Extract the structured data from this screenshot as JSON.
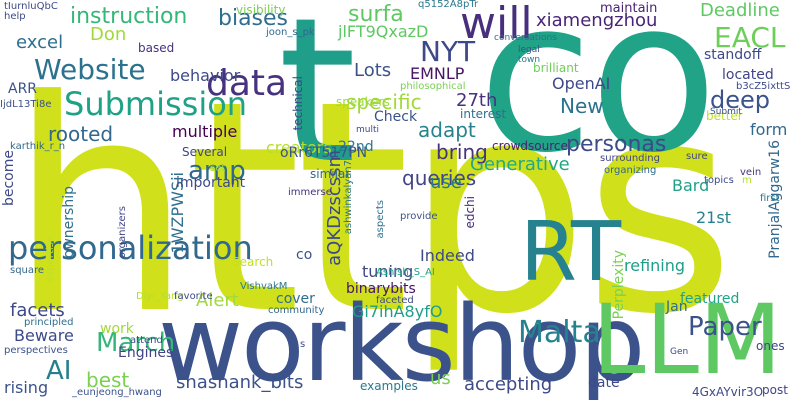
{
  "words": [
    {
      "text": "https",
      "color": "#d0e11c"
    },
    {
      "text": "co",
      "color": "#20a386"
    },
    {
      "text": "t",
      "color": "#1f9e89"
    },
    {
      "text": "t",
      "color": "#c8e020"
    },
    {
      "text": "workshop",
      "color": "#3b528b"
    },
    {
      "text": "RT",
      "color": "#26828e"
    },
    {
      "text": "LLM",
      "color": "#5ec962"
    },
    {
      "text": "personalization",
      "color": "#31688e"
    },
    {
      "text": "Submission",
      "color": "#1fa187"
    },
    {
      "text": "Website",
      "color": "#2c728e"
    },
    {
      "text": "will",
      "color": "#472f7d"
    },
    {
      "text": "EACL",
      "color": "#6ece58"
    },
    {
      "text": "NYT",
      "color": "#3e4989"
    },
    {
      "text": "data",
      "color": "#46327e"
    },
    {
      "text": "amp",
      "color": "#31688e"
    },
    {
      "text": "Malta",
      "color": "#26828e"
    },
    {
      "text": "Paper",
      "color": "#3b528b"
    },
    {
      "text": "March",
      "color": "#35b779"
    },
    {
      "text": "AI",
      "color": "#277f8e"
    },
    {
      "text": "instruction",
      "color": "#35b779"
    },
    {
      "text": "biases",
      "color": "#2e6e8e"
    },
    {
      "text": "surfa",
      "color": "#5ec962"
    },
    {
      "text": "xiamengzhou",
      "color": "#482576"
    },
    {
      "text": "Deadline",
      "color": "#5ec962"
    },
    {
      "text": "maintain",
      "color": "#482475"
    },
    {
      "text": "excel",
      "color": "#2e6e8e"
    },
    {
      "text": "Don",
      "color": "#9fda3a"
    },
    {
      "text": "Lots",
      "color": "#3b528b"
    },
    {
      "text": "EMNLP",
      "color": "#471365"
    },
    {
      "text": "behavior",
      "color": "#3e4989"
    },
    {
      "text": "specific",
      "color": "#a0da39"
    },
    {
      "text": "27th",
      "color": "#46327e"
    },
    {
      "text": "adapt",
      "color": "#26828e"
    },
    {
      "text": "deep",
      "color": "#3b528b"
    },
    {
      "text": "New",
      "color": "#2c728e"
    },
    {
      "text": "OpenAI",
      "color": "#3e4989"
    },
    {
      "text": "rooted",
      "color": "#31688e"
    },
    {
      "text": "multiple",
      "color": "#440154"
    },
    {
      "text": "personas",
      "color": "#3e4989"
    },
    {
      "text": "bring",
      "color": "#46327e"
    },
    {
      "text": "queries",
      "color": "#414487"
    },
    {
      "text": "Generative",
      "color": "#22a884"
    },
    {
      "text": "use",
      "color": "#2a788e"
    },
    {
      "text": "creators",
      "color": "#b5de2b"
    },
    {
      "text": "form",
      "color": "#31688e"
    },
    {
      "text": "22nd",
      "color": "#2a788e"
    },
    {
      "text": "Indeed",
      "color": "#3e4989"
    },
    {
      "text": "Bard",
      "color": "#1fa187"
    },
    {
      "text": "21st",
      "color": "#26828e"
    },
    {
      "text": "tuning",
      "color": "#3e4989"
    },
    {
      "text": "refining",
      "color": "#1f9e89"
    },
    {
      "text": "binarybits",
      "color": "#471365"
    },
    {
      "text": "featured",
      "color": "#20a386"
    },
    {
      "text": "cover",
      "color": "#2e6e8e"
    },
    {
      "text": "Alert",
      "color": "#9fda3a"
    },
    {
      "text": "facets",
      "color": "#3e4989"
    },
    {
      "text": "Beware",
      "color": "#3e4989"
    },
    {
      "text": "Jan",
      "color": "#2e6e8e"
    },
    {
      "text": "best",
      "color": "#7ad151"
    },
    {
      "text": "shashank_bits",
      "color": "#3b528b"
    },
    {
      "text": "accepting",
      "color": "#3e4989"
    },
    {
      "text": "rising",
      "color": "#3b528b"
    },
    {
      "text": "us",
      "color": "#7ad151"
    },
    {
      "text": "Engines",
      "color": "#414487"
    },
    {
      "text": "oRr6T517PN",
      "color": "#3b528b"
    },
    {
      "text": "aQKDzscssm",
      "color": "#3e4989"
    },
    {
      "text": "Gi7ihA8yfO",
      "color": "#1f9e89"
    },
    {
      "text": "jlFT9QxazD",
      "color": "#5ec962"
    },
    {
      "text": "1WZPWSii",
      "color": "#2e6e8e"
    },
    {
      "text": "4GxAYvir3O",
      "color": "#3e4989"
    },
    {
      "text": "Search",
      "color": "#c0df25"
    },
    {
      "text": "Perplexity",
      "color": "#7ad151"
    },
    {
      "text": "PranjalAggarw16",
      "color": "#31688e"
    },
    {
      "text": "important",
      "color": "#3e4989"
    },
    {
      "text": "based",
      "color": "#46327e"
    },
    {
      "text": "Several",
      "color": "#414487"
    },
    {
      "text": "Check",
      "color": "#3b528b"
    },
    {
      "text": "ownership",
      "color": "#2e6e8e"
    },
    {
      "text": "brilliant",
      "color": "#6ece58"
    },
    {
      "text": "standoff",
      "color": "#3e4989"
    },
    {
      "text": "located",
      "color": "#414487"
    },
    {
      "text": "better",
      "color": "#bddf26"
    },
    {
      "text": "crowdsource",
      "color": "#482173"
    },
    {
      "text": "technical",
      "color": "#3e4989"
    },
    {
      "text": "speakers",
      "color": "#9fda3a"
    },
    {
      "text": "interest",
      "color": "#2e6e8e"
    },
    {
      "text": "similar",
      "color": "#31688e"
    },
    {
      "text": "work",
      "color": "#9fda3a"
    },
    {
      "text": "date",
      "color": "#3e4989"
    },
    {
      "text": "post",
      "color": "#414487"
    },
    {
      "text": "examples",
      "color": "#2a788e"
    },
    {
      "text": "ones",
      "color": "#414487"
    },
    {
      "text": "ARR",
      "color": "#3b528b"
    },
    {
      "text": "become",
      "color": "#3e4989"
    },
    {
      "text": "edchi",
      "color": "#472d7b"
    },
    {
      "text": "visibility",
      "color": "#7ad151"
    },
    {
      "text": "tIurnluQbC",
      "color": "#3e4989"
    },
    {
      "text": "q5152A8pTr",
      "color": "#2a788e"
    },
    {
      "text": "joon_s_pk",
      "color": "#31688e"
    },
    {
      "text": "conversations",
      "color": "#2e6e8e"
    },
    {
      "text": "IjdL13Ti8e",
      "color": "#3b528b"
    },
    {
      "text": "b3cZ5ixttS",
      "color": "#3e4989"
    },
    {
      "text": "karthik_r_n",
      "color": "#31688e"
    },
    {
      "text": "philosophical",
      "color": "#7ad151"
    },
    {
      "text": "VishvakM",
      "color": "#2a788e"
    },
    {
      "text": "Ashish_S_AI",
      "color": "#20a386"
    },
    {
      "text": "Diyi_Yang",
      "color": "#b5de2b"
    },
    {
      "text": "favorite",
      "color": "#3e4989"
    },
    {
      "text": "_eunjeong_hwang",
      "color": "#3b528b"
    },
    {
      "text": "ashwinkalyan7",
      "color": "#2e6e8e"
    },
    {
      "text": "Submit",
      "color": "#3b528b"
    },
    {
      "text": "surrounding",
      "color": "#414487"
    },
    {
      "text": "organizing",
      "color": "#31688e"
    },
    {
      "text": "topics",
      "color": "#3e4989"
    },
    {
      "text": "vein",
      "color": "#46327e"
    },
    {
      "text": "first",
      "color": "#2a788e"
    },
    {
      "text": "sure",
      "color": "#414487"
    },
    {
      "text": "faceted",
      "color": "#3e4989"
    },
    {
      "text": "provide",
      "color": "#3b528b"
    },
    {
      "text": "aspects",
      "color": "#2e6e8e"
    },
    {
      "text": "immerse",
      "color": "#46327e"
    },
    {
      "text": "multi",
      "color": "#3e4989"
    },
    {
      "text": "legal",
      "color": "#3b528b"
    },
    {
      "text": "town",
      "color": "#2a788e"
    },
    {
      "text": "help",
      "color": "#3e4989"
    },
    {
      "text": "set",
      "color": "#9fda3a"
    },
    {
      "text": "square",
      "color": "#31688e"
    },
    {
      "text": "expertise",
      "color": "#c0df25"
    },
    {
      "text": "organizers",
      "color": "#414487"
    },
    {
      "text": "principled",
      "color": "#2e6e8e"
    },
    {
      "text": "perspectives",
      "color": "#3b528b"
    },
    {
      "text": "attend",
      "color": "#3e4989"
    },
    {
      "text": "community",
      "color": "#31688e"
    },
    {
      "text": "Gen",
      "color": "#3e4989"
    },
    {
      "text": "m",
      "color": "#b5de2b"
    },
    {
      "text": "s",
      "color": "#3e4989"
    },
    {
      "text": "co",
      "color": "#3b528b"
    }
  ]
}
